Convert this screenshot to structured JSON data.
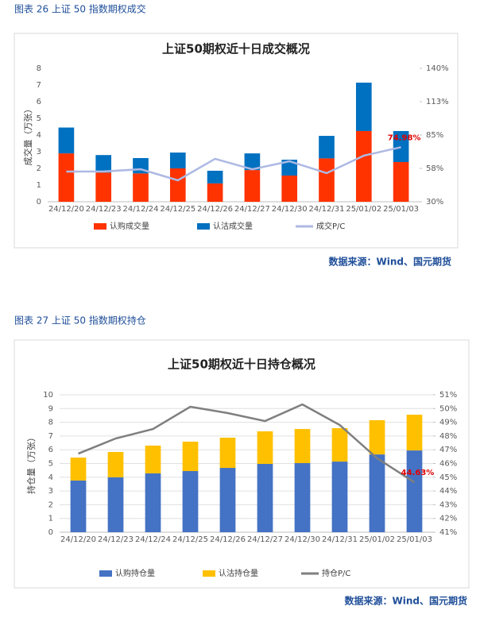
{
  "captions": [
    "图表 26  上证 50 指数期权成交",
    "图表 27  上证 50 指数期权持仓"
  ],
  "sources": [
    "数据来源：Wind、国元期货",
    "数据来源：Wind、国元期货"
  ],
  "chart_data": [
    {
      "type": "bar",
      "title": "上证50期权近十日成交概况",
      "ylabel": "成交量（万张）",
      "categories": [
        "24/12/20",
        "24/12/23",
        "24/12/24",
        "24/12/25",
        "24/12/26",
        "24/12/27",
        "24/12/30",
        "24/12/31",
        "25/01/02",
        "25/01/03"
      ],
      "series": [
        {
          "name": "认购成交量",
          "color": "#ff3300",
          "values": [
            2.9,
            1.75,
            1.7,
            2.0,
            1.1,
            1.9,
            1.57,
            2.6,
            4.24,
            2.38
          ]
        },
        {
          "name": "认沽成交量",
          "color": "#0070c0",
          "values": [
            1.55,
            1.05,
            0.92,
            0.95,
            0.76,
            1.0,
            0.95,
            1.35,
            2.9,
            1.86
          ]
        },
        {
          "name": "成交P/C",
          "color": "#adb9e3",
          "axis": "y2",
          "values": [
            54.9,
            55,
            56.8,
            47.7,
            65.4,
            56.8,
            63.4,
            53.6,
            68,
            74.98
          ],
          "value_labels": [
            null,
            null,
            null,
            null,
            null,
            null,
            null,
            null,
            null,
            "74.98%"
          ]
        }
      ],
      "ylim": [
        0,
        8
      ],
      "yticks": [
        0,
        1,
        2,
        3,
        4,
        5,
        6,
        7,
        8
      ],
      "y2lim": [
        30,
        140
      ],
      "y2ticks": [
        {
          "value": 30,
          "label": "30%"
        },
        {
          "value": 57.5,
          "label": "58%"
        },
        {
          "value": 85,
          "label": "85%"
        },
        {
          "value": 112.5,
          "label": "113%"
        },
        {
          "value": 140,
          "label": "140%"
        }
      ],
      "grid": false
    },
    {
      "type": "bar",
      "title": "上证50期权近十日持仓概况",
      "ylabel": "持仓量（万张）",
      "categories": [
        "24/12/20",
        "24/12/23",
        "24/12/24",
        "24/12/25",
        "24/12/26",
        "24/12/27",
        "24/12/30",
        "24/12/31",
        "25/01/02",
        "25/01/03"
      ],
      "series": [
        {
          "name": "认购持仓量",
          "color": "#4472c4",
          "values": [
            3.76,
            4.0,
            4.28,
            4.45,
            4.68,
            4.97,
            5.03,
            5.14,
            5.66,
            5.95
          ]
        },
        {
          "name": "认沽持仓量",
          "color": "#ffc000",
          "values": [
            1.67,
            1.84,
            2.02,
            2.14,
            2.2,
            2.37,
            2.48,
            2.43,
            2.49,
            2.6
          ]
        },
        {
          "name": "持仓P/C",
          "color": "#7f7f7f",
          "axis": "y2",
          "values": [
            46.72,
            47.82,
            48.51,
            50.13,
            49.67,
            49.09,
            50.3,
            48.8,
            46.38,
            44.63
          ],
          "value_labels": [
            null,
            null,
            null,
            null,
            null,
            null,
            null,
            null,
            null,
            "44.63%"
          ]
        }
      ],
      "ylim": [
        0,
        10
      ],
      "yticks": [
        0,
        1,
        2,
        3,
        4,
        5,
        6,
        7,
        8,
        9,
        10
      ],
      "y2lim": [
        41,
        51
      ],
      "y2ticks": [
        {
          "value": 41,
          "label": "41%"
        },
        {
          "value": 42,
          "label": "42%"
        },
        {
          "value": 43,
          "label": "43%"
        },
        {
          "value": 44,
          "label": "44%"
        },
        {
          "value": 45,
          "label": "45%"
        },
        {
          "value": 46,
          "label": "46%"
        },
        {
          "value": 47,
          "label": "47%"
        },
        {
          "value": 48,
          "label": "48%"
        },
        {
          "value": 49,
          "label": "49%"
        },
        {
          "value": 50,
          "label": "50%"
        },
        {
          "value": 51,
          "label": "51%"
        }
      ],
      "grid": true
    }
  ]
}
